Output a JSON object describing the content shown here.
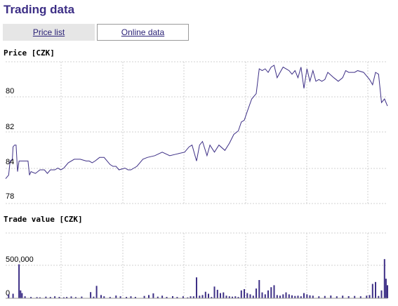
{
  "page": {
    "title": "Trading data",
    "tabs": [
      {
        "label": "Price list"
      },
      {
        "label": "Online data"
      }
    ]
  },
  "chart_data": [
    {
      "type": "line",
      "title": "Price [CZK]",
      "y_ticks": [
        "78",
        "80",
        "82",
        "84"
      ],
      "ylim": [
        77.6,
        85.6
      ],
      "grid": true,
      "color": "#3d2f86",
      "points": [
        [
          0.0,
          79.0
        ],
        [
          0.01,
          79.1
        ],
        [
          0.02,
          79.2
        ],
        [
          0.03,
          80.0
        ],
        [
          0.045,
          80.1
        ],
        [
          0.05,
          80.8
        ],
        [
          0.06,
          80.9
        ],
        [
          0.07,
          80.9
        ],
        [
          0.08,
          79.4
        ],
        [
          0.09,
          80.0
        ],
        [
          0.15,
          80.0
        ],
        [
          0.16,
          79.2
        ],
        [
          0.17,
          79.4
        ],
        [
          0.2,
          79.3
        ],
        [
          0.23,
          79.5
        ],
        [
          0.26,
          79.5
        ],
        [
          0.28,
          79.3
        ],
        [
          0.3,
          79.5
        ],
        [
          0.33,
          79.5
        ],
        [
          0.35,
          79.6
        ],
        [
          0.37,
          79.5
        ],
        [
          0.39,
          79.6
        ],
        [
          0.42,
          79.9
        ],
        [
          0.46,
          80.1
        ],
        [
          0.5,
          80.1
        ],
        [
          0.54,
          80.0
        ],
        [
          0.56,
          80.0
        ],
        [
          0.58,
          79.9
        ],
        [
          0.6,
          80.0
        ],
        [
          0.63,
          80.2
        ],
        [
          0.66,
          80.2
        ],
        [
          0.7,
          79.8
        ],
        [
          0.72,
          79.7
        ],
        [
          0.74,
          79.7
        ],
        [
          0.76,
          79.5
        ],
        [
          0.8,
          79.6
        ],
        [
          0.82,
          79.5
        ],
        [
          0.84,
          79.5
        ],
        [
          0.86,
          79.6
        ],
        [
          0.88,
          79.7
        ],
        [
          0.9,
          79.9
        ],
        [
          0.92,
          80.1
        ],
        [
          0.95,
          80.2
        ],
        [
          1.0,
          80.3
        ],
        [
          1.05,
          80.5
        ],
        [
          1.1,
          80.3
        ],
        [
          1.15,
          80.4
        ],
        [
          1.2,
          80.5
        ],
        [
          1.23,
          80.8
        ],
        [
          1.25,
          80.9
        ],
        [
          1.28,
          80.0
        ],
        [
          1.3,
          80.9
        ],
        [
          1.32,
          81.1
        ],
        [
          1.35,
          80.3
        ],
        [
          1.37,
          80.9
        ],
        [
          1.4,
          80.5
        ],
        [
          1.43,
          80.9
        ],
        [
          1.47,
          80.6
        ],
        [
          1.5,
          81.0
        ],
        [
          1.53,
          81.5
        ],
        [
          1.56,
          81.7
        ],
        [
          1.58,
          82.2
        ],
        [
          1.6,
          82.3
        ],
        [
          1.62,
          82.8
        ],
        [
          1.65,
          83.5
        ],
        [
          1.68,
          83.8
        ],
        [
          1.7,
          85.2
        ],
        [
          1.72,
          85.1
        ],
        [
          1.74,
          85.2
        ],
        [
          1.76,
          85.0
        ],
        [
          1.78,
          85.3
        ],
        [
          1.8,
          85.4
        ],
        [
          1.82,
          84.7
        ],
        [
          1.84,
          85.0
        ],
        [
          1.86,
          85.3
        ],
        [
          1.88,
          85.2
        ],
        [
          1.9,
          85.1
        ],
        [
          1.92,
          84.9
        ],
        [
          1.94,
          85.1
        ],
        [
          1.96,
          84.7
        ],
        [
          1.98,
          85.3
        ],
        [
          2.0,
          84.1
        ],
        [
          2.02,
          85.2
        ],
        [
          2.04,
          84.5
        ],
        [
          2.06,
          85.1
        ],
        [
          2.08,
          84.5
        ],
        [
          2.1,
          84.6
        ],
        [
          2.12,
          84.5
        ],
        [
          2.14,
          84.6
        ],
        [
          2.16,
          85.0
        ],
        [
          2.2,
          84.7
        ],
        [
          2.23,
          84.5
        ],
        [
          2.26,
          84.7
        ],
        [
          2.28,
          85.1
        ],
        [
          2.3,
          85.0
        ],
        [
          2.34,
          85.0
        ],
        [
          2.36,
          85.1
        ],
        [
          2.4,
          85.0
        ],
        [
          2.44,
          84.6
        ],
        [
          2.46,
          84.3
        ],
        [
          2.48,
          85.0
        ],
        [
          2.5,
          84.9
        ],
        [
          2.52,
          83.3
        ],
        [
          2.54,
          83.5
        ],
        [
          2.56,
          83.1
        ]
      ]
    },
    {
      "type": "bar",
      "title": "Trade value [CZK]",
      "y_ticks": [
        "0",
        "500,000"
      ],
      "ylim": [
        0,
        1000000
      ],
      "grid": true,
      "color": "#3d2f86",
      "points": [
        [
          0.02,
          60000
        ],
        [
          0.05,
          70000
        ],
        [
          0.09,
          520000
        ],
        [
          0.1,
          120000
        ],
        [
          0.11,
          80000
        ],
        [
          0.13,
          30000
        ],
        [
          0.17,
          20000
        ],
        [
          0.21,
          18000
        ],
        [
          0.23,
          15000
        ],
        [
          0.27,
          25000
        ],
        [
          0.3,
          20000
        ],
        [
          0.33,
          30000
        ],
        [
          0.36,
          22000
        ],
        [
          0.39,
          15000
        ],
        [
          0.41,
          20000
        ],
        [
          0.44,
          28000
        ],
        [
          0.47,
          18000
        ],
        [
          0.51,
          26000
        ],
        [
          0.57,
          95000
        ],
        [
          0.59,
          25000
        ],
        [
          0.61,
          190000
        ],
        [
          0.64,
          50000
        ],
        [
          0.66,
          30000
        ],
        [
          0.7,
          20000
        ],
        [
          0.74,
          42000
        ],
        [
          0.77,
          30000
        ],
        [
          0.81,
          22000
        ],
        [
          0.84,
          30000
        ],
        [
          0.87,
          22000
        ],
        [
          0.93,
          35000
        ],
        [
          0.96,
          50000
        ],
        [
          0.99,
          75000
        ],
        [
          1.02,
          25000
        ],
        [
          1.05,
          40000
        ],
        [
          1.08,
          22000
        ],
        [
          1.12,
          32000
        ],
        [
          1.15,
          20000
        ],
        [
          1.19,
          30000
        ],
        [
          1.22,
          14000
        ],
        [
          1.24,
          30000
        ],
        [
          1.26,
          30000
        ],
        [
          1.28,
          320000
        ],
        [
          1.3,
          40000
        ],
        [
          1.32,
          50000
        ],
        [
          1.34,
          100000
        ],
        [
          1.36,
          70000
        ],
        [
          1.38,
          20000
        ],
        [
          1.4,
          180000
        ],
        [
          1.42,
          130000
        ],
        [
          1.44,
          80000
        ],
        [
          1.46,
          90000
        ],
        [
          1.48,
          40000
        ],
        [
          1.5,
          30000
        ],
        [
          1.52,
          25000
        ],
        [
          1.54,
          30000
        ],
        [
          1.56,
          20000
        ],
        [
          1.58,
          120000
        ],
        [
          1.6,
          140000
        ],
        [
          1.62,
          80000
        ],
        [
          1.64,
          60000
        ],
        [
          1.66,
          40000
        ],
        [
          1.68,
          150000
        ],
        [
          1.7,
          280000
        ],
        [
          1.72,
          90000
        ],
        [
          1.74,
          60000
        ],
        [
          1.76,
          120000
        ],
        [
          1.78,
          170000
        ],
        [
          1.8,
          200000
        ],
        [
          1.82,
          50000
        ],
        [
          1.84,
          40000
        ],
        [
          1.86,
          60000
        ],
        [
          1.88,
          90000
        ],
        [
          1.9,
          60000
        ],
        [
          1.92,
          45000
        ],
        [
          1.94,
          35000
        ],
        [
          1.96,
          40000
        ],
        [
          1.98,
          30000
        ],
        [
          2.0,
          80000
        ],
        [
          2.02,
          60000
        ],
        [
          2.04,
          45000
        ],
        [
          2.06,
          40000
        ],
        [
          2.1,
          30000
        ],
        [
          2.14,
          35000
        ],
        [
          2.18,
          42000
        ],
        [
          2.22,
          30000
        ],
        [
          2.26,
          40000
        ],
        [
          2.3,
          32000
        ],
        [
          2.34,
          36000
        ],
        [
          2.38,
          30000
        ],
        [
          2.42,
          40000
        ],
        [
          2.44,
          50000
        ],
        [
          2.46,
          220000
        ],
        [
          2.48,
          250000
        ],
        [
          2.5,
          35000
        ],
        [
          2.52,
          120000
        ],
        [
          2.54,
          600000
        ],
        [
          2.55,
          300000
        ],
        [
          2.56,
          200000
        ]
      ]
    }
  ]
}
